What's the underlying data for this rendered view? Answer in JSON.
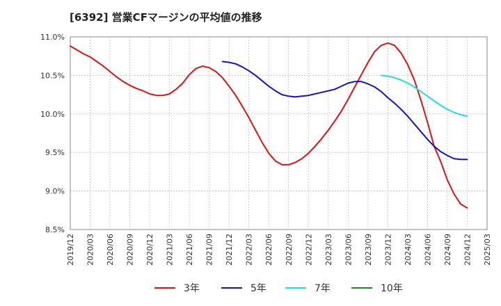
{
  "chart_data": {
    "type": "line",
    "title": "[6392]  営業CFマージンの平均値の推移",
    "xlabel": "",
    "ylabel": "",
    "ylim": [
      8.5,
      11.0
    ],
    "yticks": [
      "8.5%",
      "9.0%",
      "9.5%",
      "10.0%",
      "10.5%",
      "11.0%"
    ],
    "ytick_values": [
      8.5,
      9.0,
      9.5,
      10.0,
      10.5,
      11.0
    ],
    "xticks": [
      "2019/12",
      "2020/03",
      "2020/06",
      "2020/09",
      "2020/12",
      "2021/03",
      "2021/06",
      "2021/09",
      "2021/12",
      "2022/03",
      "2022/06",
      "2022/09",
      "2022/12",
      "2023/03",
      "2023/06",
      "2023/09",
      "2023/12",
      "2024/03",
      "2024/06",
      "2024/09",
      "2024/12",
      "2025/03"
    ],
    "grid": true,
    "legend_position": "bottom",
    "series": [
      {
        "name": "3年",
        "color": "#dd1111",
        "x": [
          "2019/12",
          "2020/01",
          "2020/02",
          "2020/03",
          "2020/04",
          "2020/05",
          "2020/06",
          "2020/07",
          "2020/08",
          "2020/09",
          "2020/10",
          "2020/11",
          "2020/12",
          "2021/01",
          "2021/02",
          "2021/03",
          "2021/04",
          "2021/05",
          "2021/06",
          "2021/07",
          "2021/08",
          "2021/09",
          "2021/10",
          "2021/11",
          "2021/12",
          "2022/01",
          "2022/02",
          "2022/03",
          "2022/04",
          "2022/05",
          "2022/06",
          "2022/07",
          "2022/08",
          "2022/09",
          "2022/10",
          "2022/11",
          "2022/12",
          "2023/01",
          "2023/02",
          "2023/03",
          "2023/04",
          "2023/05",
          "2023/06",
          "2023/07",
          "2023/08",
          "2023/09",
          "2023/10",
          "2023/11",
          "2023/12",
          "2024/01",
          "2024/02",
          "2024/03",
          "2024/04",
          "2024/05",
          "2024/06",
          "2024/07",
          "2024/08",
          "2024/09",
          "2024/10",
          "2024/11",
          "2024/12"
        ],
        "values": [
          10.88,
          10.83,
          10.78,
          10.74,
          10.68,
          10.62,
          10.55,
          10.48,
          10.42,
          10.37,
          10.33,
          10.3,
          10.26,
          10.24,
          10.24,
          10.26,
          10.32,
          10.4,
          10.51,
          10.59,
          10.62,
          10.6,
          10.55,
          10.47,
          10.36,
          10.24,
          10.1,
          9.95,
          9.79,
          9.63,
          9.49,
          9.39,
          9.34,
          9.34,
          9.37,
          9.42,
          9.49,
          9.58,
          9.68,
          9.79,
          9.91,
          10.04,
          10.19,
          10.35,
          10.51,
          10.67,
          10.81,
          10.89,
          10.92,
          10.89,
          10.79,
          10.64,
          10.44,
          10.18,
          9.89,
          9.58,
          9.38,
          9.14,
          8.96,
          8.83,
          8.78
        ]
      },
      {
        "name": "5年",
        "color": "#1111cc",
        "x": [
          "2021/11",
          "2021/12",
          "2022/01",
          "2022/02",
          "2022/03",
          "2022/04",
          "2022/05",
          "2022/06",
          "2022/07",
          "2022/08",
          "2022/09",
          "2022/10",
          "2022/11",
          "2022/12",
          "2023/01",
          "2023/02",
          "2023/03",
          "2023/04",
          "2023/05",
          "2023/06",
          "2023/07",
          "2023/08",
          "2023/09",
          "2023/10",
          "2023/11",
          "2023/12",
          "2024/01",
          "2024/02",
          "2024/03",
          "2024/04",
          "2024/05",
          "2024/06",
          "2024/07",
          "2024/08",
          "2024/09",
          "2024/10",
          "2024/11",
          "2024/12"
        ],
        "values": [
          10.68,
          10.67,
          10.65,
          10.61,
          10.56,
          10.5,
          10.43,
          10.36,
          10.3,
          10.25,
          10.23,
          10.22,
          10.23,
          10.24,
          10.26,
          10.28,
          10.3,
          10.32,
          10.36,
          10.4,
          10.42,
          10.42,
          10.39,
          10.35,
          10.29,
          10.21,
          10.14,
          10.06,
          9.97,
          9.87,
          9.77,
          9.67,
          9.58,
          9.51,
          9.46,
          9.42,
          9.41,
          9.41
        ]
      },
      {
        "name": "7年",
        "color": "#22dddd",
        "x": [
          "2023/11",
          "2023/12",
          "2024/01",
          "2024/02",
          "2024/03",
          "2024/04",
          "2024/05",
          "2024/06",
          "2024/07",
          "2024/08",
          "2024/09",
          "2024/10",
          "2024/11",
          "2024/12"
        ],
        "values": [
          10.5,
          10.49,
          10.47,
          10.44,
          10.4,
          10.35,
          10.29,
          10.23,
          10.17,
          10.11,
          10.06,
          10.02,
          9.99,
          9.97
        ]
      },
      {
        "name": "10年",
        "color": "#228822",
        "x": [],
        "values": []
      }
    ]
  }
}
